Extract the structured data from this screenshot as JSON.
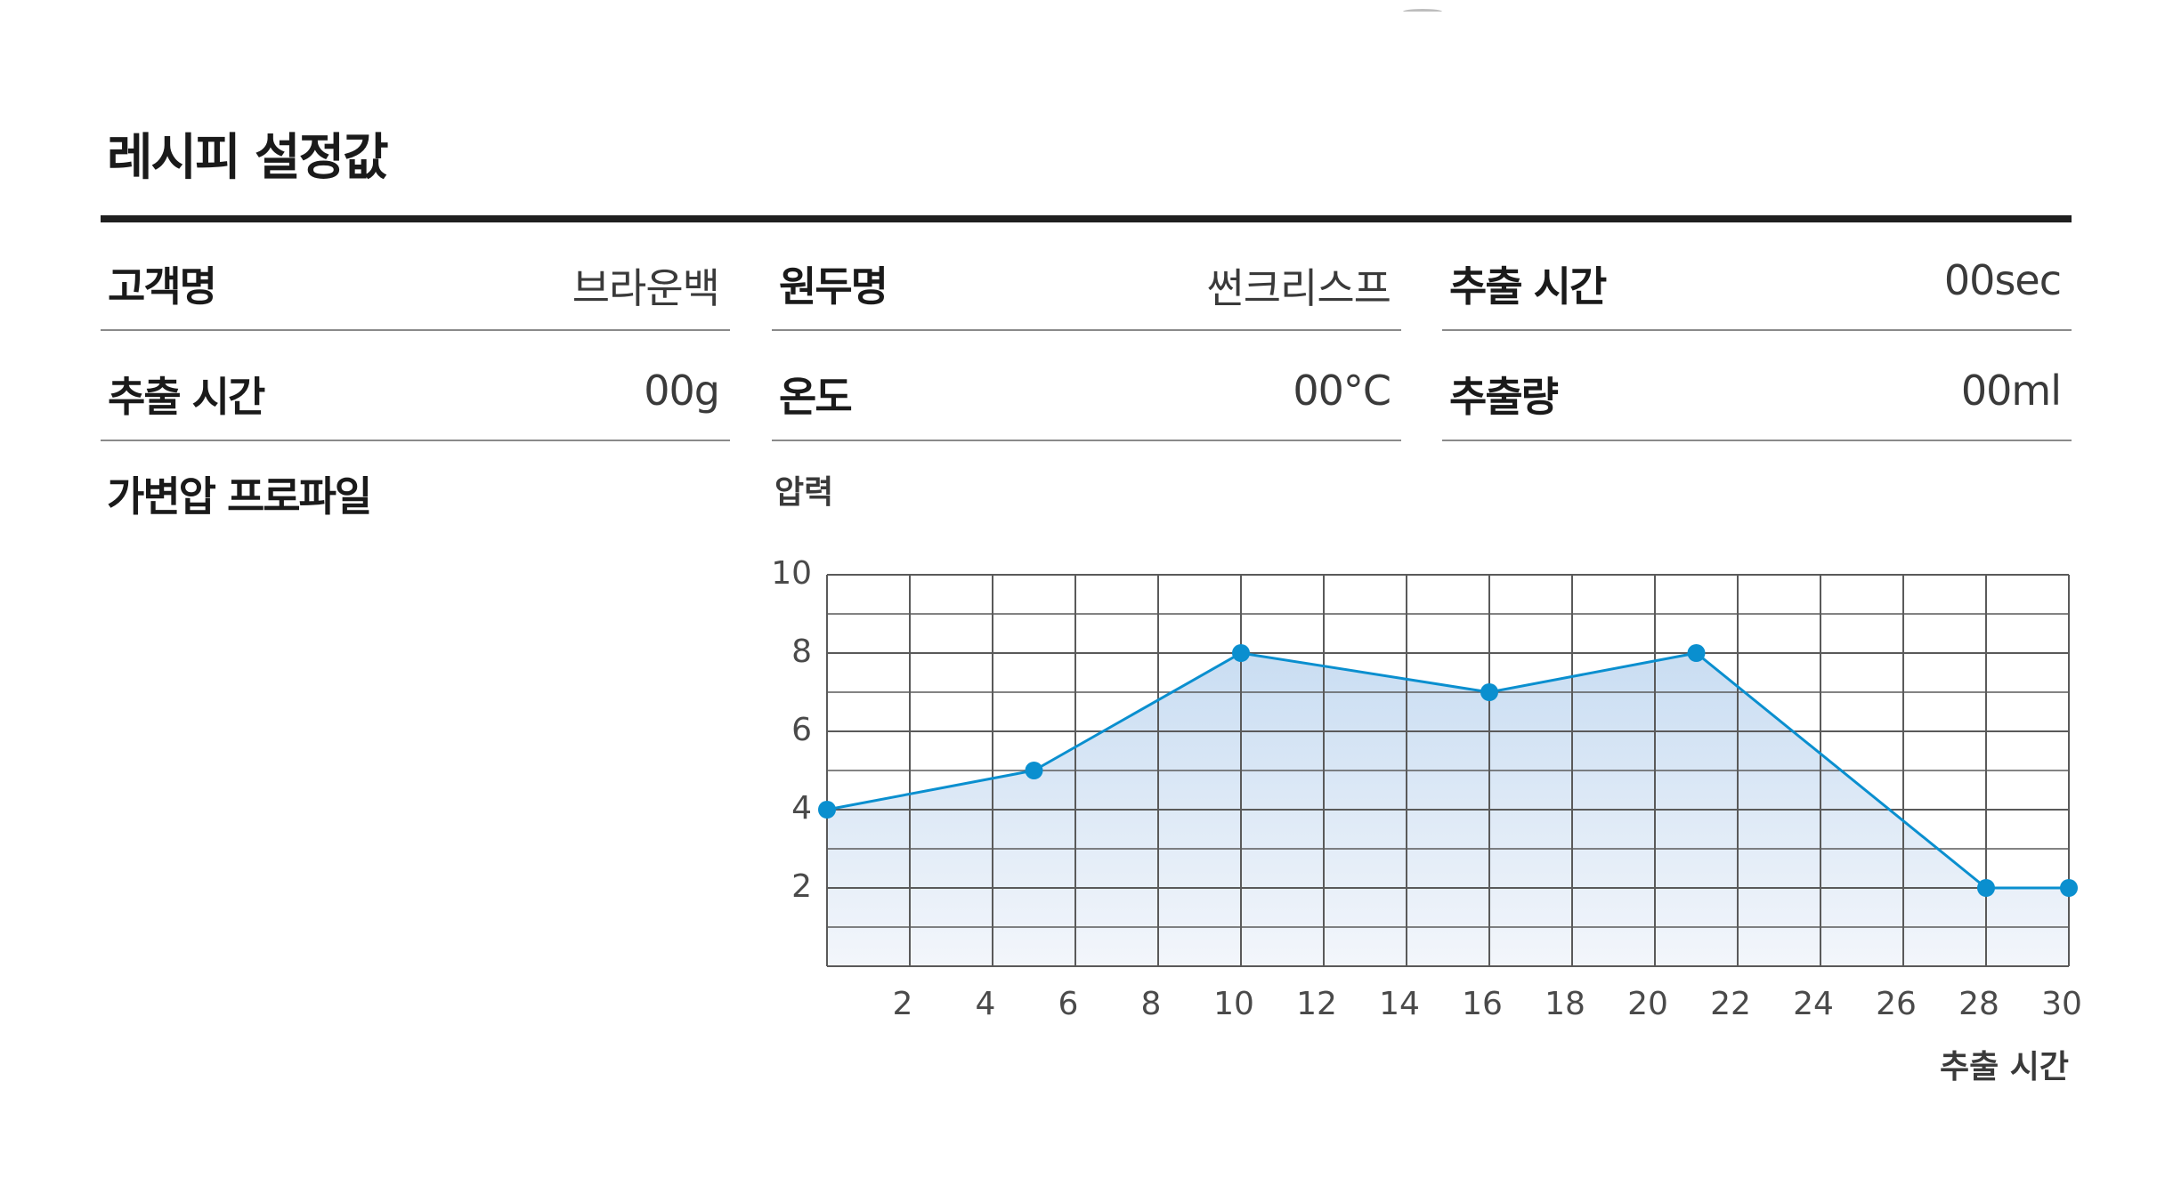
{
  "title": "레시피 설정값",
  "fields": [
    {
      "label": "고객명",
      "value": "브라운백"
    },
    {
      "label": "원두명",
      "value": "썬크리스프"
    },
    {
      "label": "추출 시간",
      "value": "00sec"
    },
    {
      "label": "추출 시간",
      "value": "00g"
    },
    {
      "label": "온도",
      "value": "00°C"
    },
    {
      "label": "추출량",
      "value": "00ml"
    }
  ],
  "profile_label": "가변압 프로파일",
  "colors": {
    "line": "#0a8fcf",
    "fill_top": "#c9ddf2",
    "fill_bottom": "#f3f6fb",
    "grid": "#5a5a5a"
  },
  "chart_data": {
    "type": "area",
    "ylabel": "압력",
    "xlabel": "추출 시간",
    "xlim": [
      0,
      30
    ],
    "ylim": [
      0,
      10
    ],
    "xticks": [
      2,
      4,
      6,
      8,
      10,
      12,
      14,
      16,
      18,
      20,
      22,
      24,
      26,
      28,
      30
    ],
    "yticks": [
      2,
      4,
      6,
      8,
      10
    ],
    "grid": true,
    "series": [
      {
        "x": [
          0,
          5,
          10,
          16,
          21,
          28,
          30
        ],
        "y": [
          4,
          5,
          8,
          7,
          8,
          2,
          2
        ]
      }
    ]
  }
}
